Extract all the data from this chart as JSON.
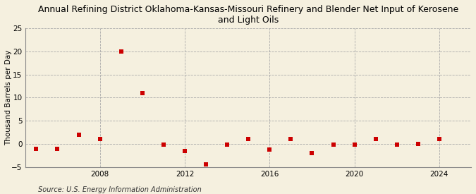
{
  "title": "Annual Refining District Oklahoma-Kansas-Missouri Refinery and Blender Net Input of Kerosene\nand Light Oils",
  "ylabel": "Thousand Barrels per Day",
  "source": "Source: U.S. Energy Information Administration",
  "years": [
    2005,
    2006,
    2007,
    2008,
    2009,
    2010,
    2011,
    2012,
    2013,
    2014,
    2015,
    2016,
    2017,
    2018,
    2019,
    2020,
    2021,
    2022,
    2023,
    2024
  ],
  "values": [
    -1.0,
    -1.0,
    2.0,
    1.0,
    20.0,
    11.0,
    -0.2,
    -1.5,
    -4.5,
    -0.2,
    1.0,
    -1.2,
    1.0,
    -2.0,
    -0.2,
    -0.2,
    1.0,
    -0.2,
    0.0,
    1.0
  ],
  "marker_color": "#cc0000",
  "marker_size": 4,
  "background_color": "#f5f0df",
  "plot_bg_color": "#f5f0df",
  "grid_color": "#aaaaaa",
  "ylim": [
    -5,
    25
  ],
  "yticks": [
    -5,
    0,
    5,
    10,
    15,
    20,
    25
  ],
  "xlim": [
    2004.5,
    2025.5
  ],
  "xticks": [
    2008,
    2012,
    2016,
    2020,
    2024
  ],
  "title_fontsize": 9,
  "ylabel_fontsize": 7.5,
  "tick_fontsize": 7.5,
  "source_fontsize": 7
}
